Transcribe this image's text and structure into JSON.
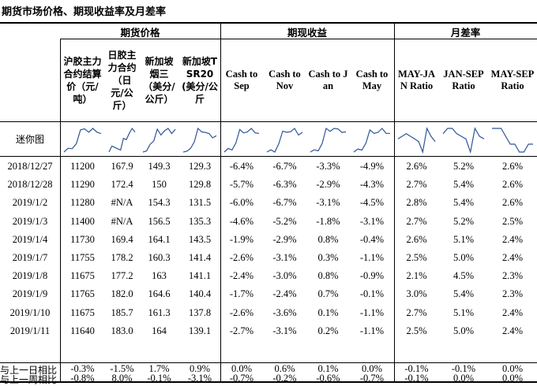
{
  "title": "期货市场价格、期现收益率及月差率",
  "groups": {
    "futures": "期货价格",
    "basis": "期现收益",
    "spread": "月差率"
  },
  "columns": [
    "沪胶主力合约结算价（元/吨）",
    "日胶主力合约（日元/公斤）",
    "新加坡烟三（美分/公斤）",
    "新加坡TSR20(美分/公斤",
    "Cash to Sep",
    "Cash to Nov",
    "Cash to Jan",
    "Cash to May",
    "MAY-JAN Ratio",
    "JAN-SEP Ratio",
    "MAY-SEP Ratio"
  ],
  "sparkline_label": "迷你图",
  "rows": [
    {
      "label": "2018/12/27",
      "values": [
        "11200",
        "167.9",
        "149.3",
        "129.3",
        "-6.4%",
        "-6.7%",
        "-3.3%",
        "-4.9%",
        "2.6%",
        "5.2%",
        "2.6%"
      ]
    },
    {
      "label": "2018/12/28",
      "values": [
        "11290",
        "172.4",
        "150",
        "129.8",
        "-5.7%",
        "-6.3%",
        "-2.9%",
        "-4.3%",
        "2.7%",
        "5.4%",
        "2.6%"
      ]
    },
    {
      "label": "2019/1/2",
      "values": [
        "11280",
        "#N/A",
        "154.3",
        "131.5",
        "-6.0%",
        "-6.7%",
        "-3.1%",
        "-4.5%",
        "2.8%",
        "5.4%",
        "2.6%"
      ]
    },
    {
      "label": "2019/1/3",
      "values": [
        "11400",
        "#N/A",
        "156.5",
        "135.3",
        "-4.6%",
        "-5.2%",
        "-1.8%",
        "-3.1%",
        "2.7%",
        "5.2%",
        "2.5%"
      ]
    },
    {
      "label": "2019/1/4",
      "values": [
        "11730",
        "169.4",
        "164.1",
        "143.5",
        "-1.9%",
        "-2.9%",
        "0.8%",
        "-0.4%",
        "2.6%",
        "5.1%",
        "2.4%"
      ]
    },
    {
      "label": "2019/1/7",
      "values": [
        "11755",
        "178.2",
        "160.3",
        "141.4",
        "-2.6%",
        "-3.1%",
        "0.3%",
        "-1.1%",
        "2.5%",
        "5.0%",
        "2.4%"
      ]
    },
    {
      "label": "2019/1/8",
      "values": [
        "11675",
        "177.2",
        "163",
        "141.1",
        "-2.4%",
        "-3.0%",
        "0.8%",
        "-0.9%",
        "2.1%",
        "4.5%",
        "2.3%"
      ]
    },
    {
      "label": "2019/1/9",
      "values": [
        "11765",
        "182.0",
        "164.6",
        "140.4",
        "-1.7%",
        "-2.4%",
        "0.7%",
        "-0.1%",
        "3.0%",
        "5.4%",
        "2.3%"
      ]
    },
    {
      "label": "2019/1/10",
      "values": [
        "11675",
        "185.7",
        "161.3",
        "137.8",
        "-2.6%",
        "-3.6%",
        "0.1%",
        "-1.1%",
        "2.7%",
        "5.1%",
        "2.4%"
      ]
    },
    {
      "label": "2019/1/11",
      "values": [
        "11640",
        "183.0",
        "164",
        "139.1",
        "-2.7%",
        "-3.1%",
        "0.2%",
        "-1.1%",
        "2.5%",
        "5.0%",
        "2.4%"
      ]
    }
  ],
  "summary_rows": [
    {
      "label": "与上一日相比",
      "values": [
        "-0.3%",
        "-1.5%",
        "1.7%",
        "0.9%",
        "0.0%",
        "0.6%",
        "0.1%",
        "0.0%",
        "-0.1%",
        "-0.1%",
        "0.0%"
      ]
    },
    {
      "label": "与上一周相比",
      "values": [
        "-0.8%",
        "8.0%",
        "-0.1%",
        "-3.1%",
        "-0.7%",
        "-0.2%",
        "-0.6%",
        "-0.7%",
        "-0.1%",
        "0.0%",
        "0.0%"
      ]
    }
  ],
  "colors": {
    "sparkline": "#2f5597"
  }
}
